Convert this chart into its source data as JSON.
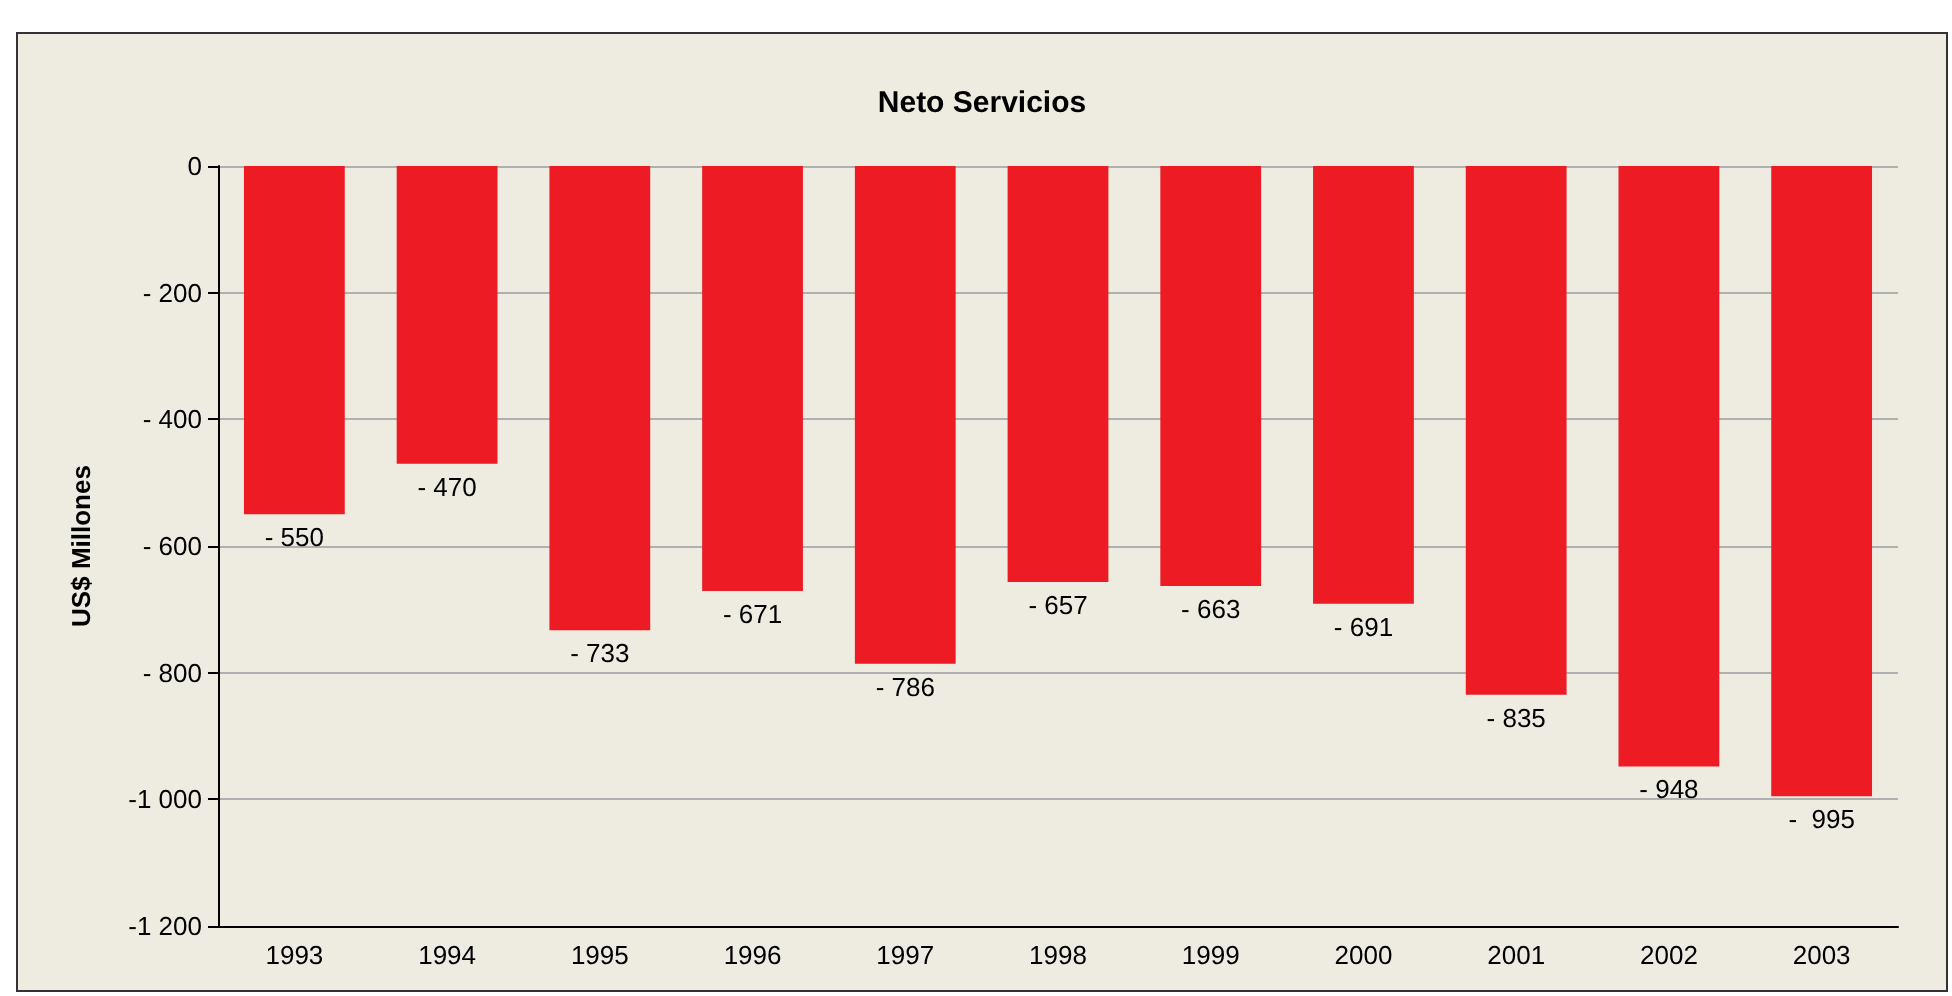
{
  "chart_data": {
    "type": "bar",
    "title": "Neto Servicios",
    "ylabel": "US$ Millones",
    "categories": [
      "1993",
      "1994",
      "1995",
      "1996",
      "1997",
      "1998",
      "1999",
      "2000",
      "2001",
      "2002",
      "2003"
    ],
    "values": [
      -550,
      -470,
      -733,
      -671,
      -786,
      -657,
      -663,
      -691,
      -835,
      -948,
      -995
    ],
    "value_labels": [
      "- 550",
      "- 470",
      "- 733",
      "- 671",
      "- 786",
      "- 657",
      "- 663",
      "- 691",
      "- 835",
      "- 948",
      "-  995"
    ],
    "color": "#ed1c24",
    "ylim": [
      -1200,
      0
    ],
    "yticks": [
      {
        "value": 0,
        "label": "0"
      },
      {
        "value": -200,
        "label": "- 200"
      },
      {
        "value": -400,
        "label": "- 400"
      },
      {
        "value": -600,
        "label": "- 600"
      },
      {
        "value": -800,
        "label": "- 800"
      },
      {
        "value": -1000,
        "label": "-1 000"
      },
      {
        "value": -1200,
        "label": "-1 200"
      }
    ],
    "grid": "y"
  }
}
